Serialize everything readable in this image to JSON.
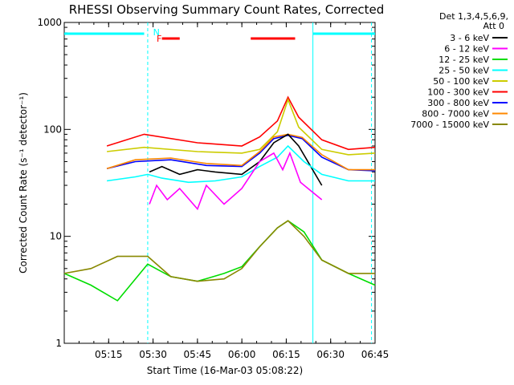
{
  "chart_data": {
    "type": "line",
    "title": "RHESSI Observing Summary Count Rates, Corrected",
    "xlabel": "Start Time (16-Mar-03 05:08:22)",
    "ylabel": "Corrected Count Rate (s⁻¹ detector⁻¹)",
    "yscale": "log",
    "ylim": [
      1,
      1000
    ],
    "xlim_minutes": [
      5.0,
      6.75
    ],
    "x_tick_labels": [
      "05:15",
      "05:30",
      "05:45",
      "06:00",
      "06:15",
      "06:30",
      "06:45"
    ],
    "y_tick_labels": [
      "1",
      "10",
      "100",
      "1000"
    ],
    "legend": {
      "header": [
        "Det 1,3,4,5,6,9,",
        "Att 0"
      ],
      "entries": [
        {
          "label": "3 - 6 keV",
          "color": "#000000"
        },
        {
          "label": "6 - 12 keV",
          "color": "#ff00ff"
        },
        {
          "label": "12 - 25 keV",
          "color": "#00dd00"
        },
        {
          "label": "25 - 50 keV",
          "color": "#00ffff"
        },
        {
          "label": "50 - 100 keV",
          "color": "#cccc00"
        },
        {
          "label": "100 - 300 keV",
          "color": "#ff0000"
        },
        {
          "label": "300 - 800 keV",
          "color": "#0000ff"
        },
        {
          "label": "800 - 7000 keV",
          "color": "#ff8800"
        },
        {
          "label": "7000 - 15000 keV",
          "color": "#888800"
        }
      ]
    },
    "flags": {
      "night_label": "N",
      "flare_label": "F"
    },
    "series": [
      {
        "color": "#ff0000",
        "x": [
          5.24,
          5.45,
          5.75,
          6.0,
          6.1,
          6.2,
          6.26,
          6.32,
          6.45,
          6.6,
          6.75
        ],
        "y": [
          70,
          90,
          75,
          70,
          85,
          120,
          200,
          130,
          80,
          65,
          68
        ]
      },
      {
        "color": "#cccc00",
        "x": [
          5.24,
          5.45,
          5.75,
          6.0,
          6.1,
          6.2,
          6.26,
          6.32,
          6.45,
          6.6,
          6.75
        ],
        "y": [
          62,
          68,
          62,
          60,
          65,
          95,
          190,
          105,
          65,
          58,
          60
        ]
      },
      {
        "color": "#0000ff",
        "x": [
          5.24,
          5.4,
          5.6,
          5.8,
          6.0,
          6.1,
          6.18,
          6.26,
          6.34,
          6.45,
          6.6,
          6.75
        ],
        "y": [
          43,
          50,
          52,
          46,
          45,
          60,
          82,
          88,
          82,
          55,
          42,
          41
        ]
      },
      {
        "color": "#ff8800",
        "x": [
          5.24,
          5.4,
          5.6,
          5.8,
          6.0,
          6.1,
          6.18,
          6.26,
          6.34,
          6.45,
          6.6,
          6.75
        ],
        "y": [
          43,
          52,
          54,
          48,
          46,
          62,
          85,
          90,
          84,
          58,
          42,
          42
        ]
      },
      {
        "color": "#000000",
        "x": [
          5.48,
          5.55,
          5.65,
          5.75,
          5.85,
          6.0,
          6.1,
          6.18,
          6.26,
          6.32,
          6.45
        ],
        "y": [
          40,
          45,
          38,
          42,
          40,
          38,
          50,
          75,
          90,
          70,
          30
        ]
      },
      {
        "color": "#00ffff",
        "x": [
          5.24,
          5.4,
          5.47,
          5.55,
          5.7,
          5.85,
          6.0,
          6.1,
          6.2,
          6.26,
          6.35,
          6.45,
          6.6,
          6.75
        ],
        "y": [
          33,
          36,
          38,
          35,
          32,
          33,
          36,
          45,
          55,
          70,
          50,
          38,
          33,
          33
        ]
      },
      {
        "color": "#ff00ff",
        "x": [
          5.48,
          5.52,
          5.58,
          5.65,
          5.75,
          5.8,
          5.9,
          6.0,
          6.1,
          6.18,
          6.23,
          6.27,
          6.33,
          6.45
        ],
        "y": [
          20,
          30,
          22,
          28,
          18,
          30,
          20,
          28,
          50,
          60,
          42,
          60,
          32,
          22
        ]
      },
      {
        "color": "#00dd00",
        "x": [
          5.0,
          5.15,
          5.3,
          5.47,
          5.6,
          5.75,
          5.9,
          6.0,
          6.1,
          6.2,
          6.26,
          6.35,
          6.45,
          6.6,
          6.75
        ],
        "y": [
          4.5,
          3.5,
          2.5,
          5.5,
          4.2,
          3.8,
          4.5,
          5.2,
          8,
          12,
          14,
          11,
          6,
          4.5,
          3.5
        ]
      },
      {
        "color": "#888800",
        "x": [
          5.0,
          5.15,
          5.3,
          5.47,
          5.6,
          5.75,
          5.9,
          6.0,
          6.1,
          6.2,
          6.26,
          6.35,
          6.45,
          6.6,
          6.75
        ],
        "y": [
          4.5,
          5.0,
          6.5,
          6.5,
          4.2,
          3.8,
          4.0,
          5.0,
          8,
          12,
          14,
          10,
          6,
          4.5,
          4.5
        ]
      }
    ]
  }
}
